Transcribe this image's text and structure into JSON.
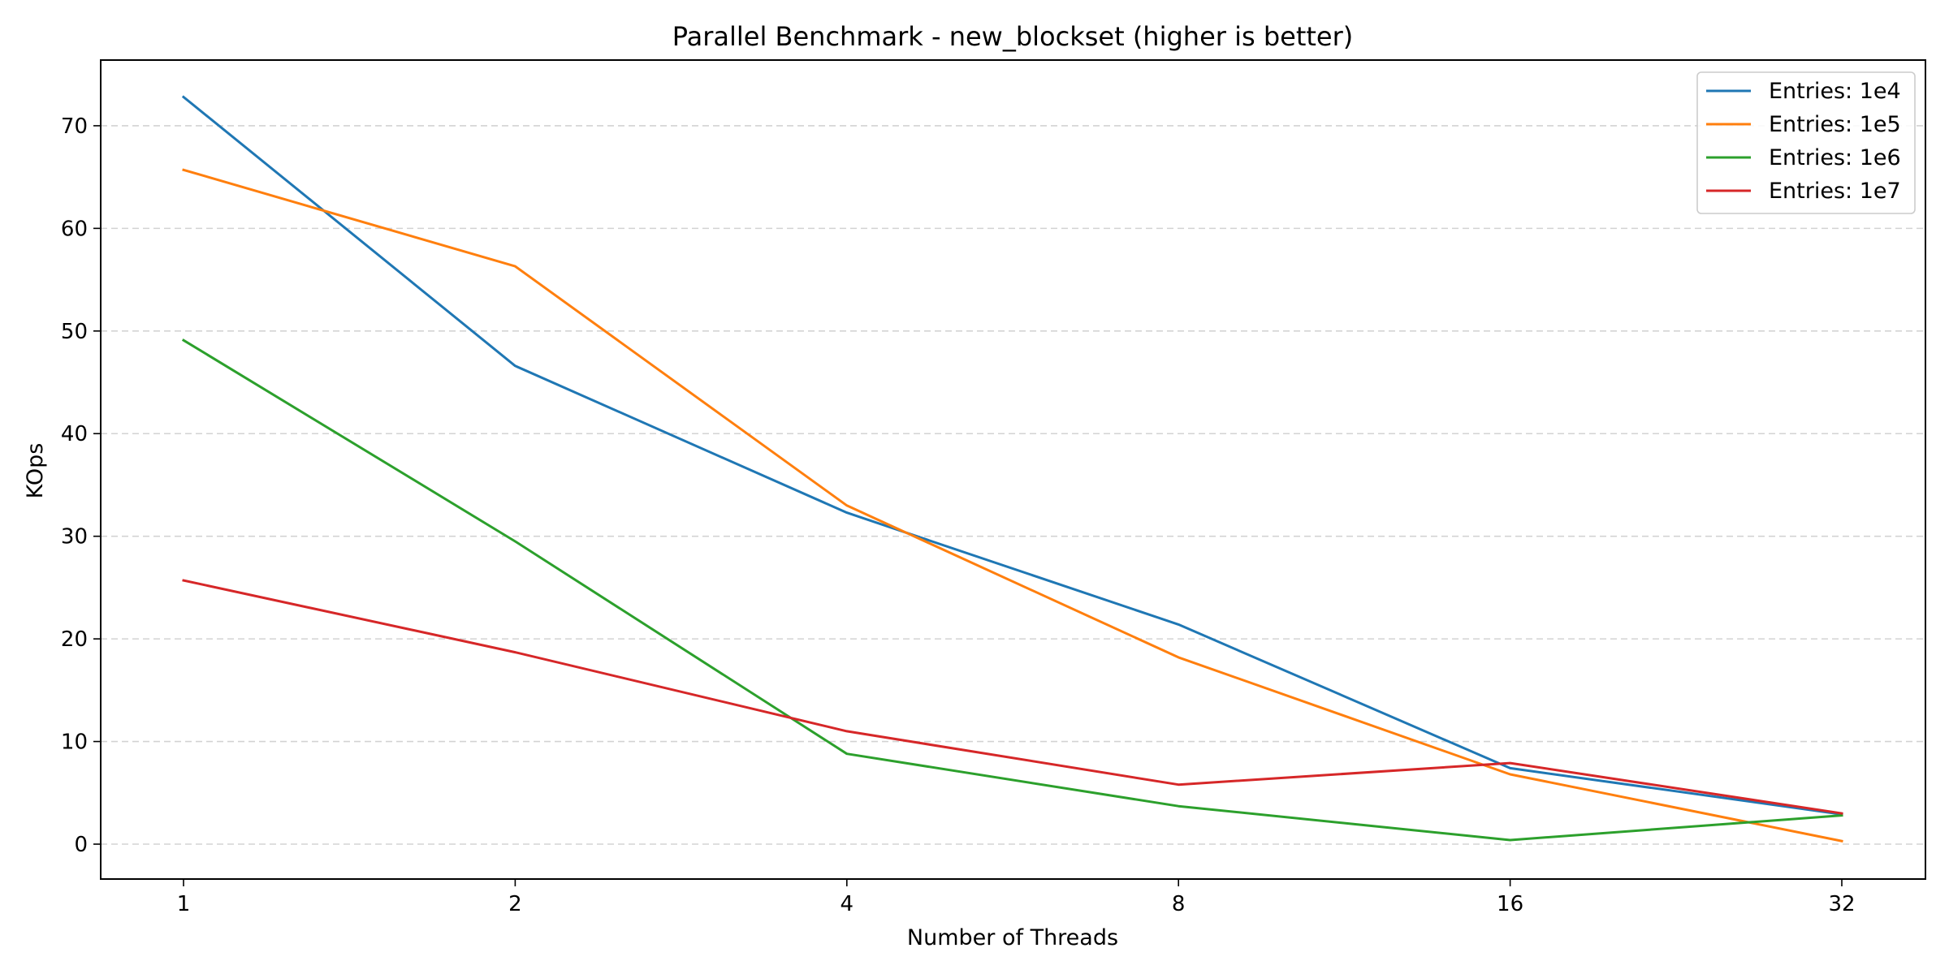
{
  "chart_data": {
    "type": "line",
    "title": "Parallel Benchmark - new_blockset (higher is better)",
    "xlabel": "Number of Threads",
    "ylabel": "KOps",
    "x": [
      1,
      2,
      4,
      8,
      16,
      32
    ],
    "x_tick_labels": [
      "1",
      "2",
      "4",
      "8",
      "16",
      "32"
    ],
    "x_scale": "log2",
    "ylim": [
      -3.4,
      76.4
    ],
    "y_ticks": [
      0,
      10,
      20,
      30,
      40,
      50,
      60,
      70
    ],
    "grid": "horizontal dashed",
    "legend_position": "top-right",
    "series": [
      {
        "name": "Entries: 1e4",
        "color": "#1f77b4",
        "values": [
          72.8,
          46.6,
          32.3,
          21.4,
          7.4,
          2.9
        ]
      },
      {
        "name": "Entries: 1e5",
        "color": "#ff7f0e",
        "values": [
          65.7,
          56.3,
          33.0,
          18.2,
          6.8,
          0.3
        ]
      },
      {
        "name": "Entries: 1e6",
        "color": "#2ca02c",
        "values": [
          49.1,
          29.5,
          8.8,
          3.7,
          0.4,
          2.8
        ]
      },
      {
        "name": "Entries: 1e7",
        "color": "#d62728",
        "values": [
          25.7,
          18.7,
          11.0,
          5.8,
          7.9,
          3.0
        ]
      }
    ]
  }
}
